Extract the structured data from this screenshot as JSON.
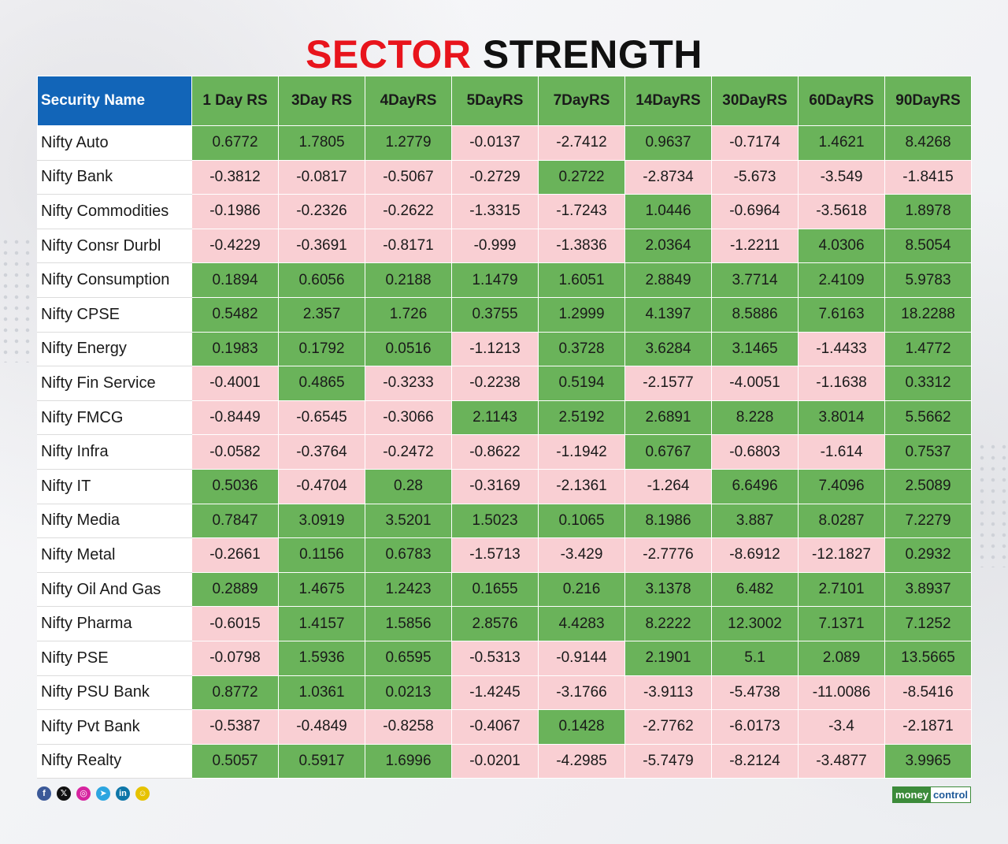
{
  "title": {
    "part1": "SECTOR",
    "part2": "STRENGTH"
  },
  "colors": {
    "positive": "#6ab35a",
    "negative": "#f9cfd3",
    "header_blue": "#1265b8",
    "title_red": "#e8141c"
  },
  "chart_data": {
    "type": "table",
    "title": "SECTOR STRENGTH",
    "columns": [
      "Security Name",
      "1 Day RS",
      "3Day RS",
      "4DayRS",
      "5DayRS",
      "7DayRS",
      "14DayRS",
      "30DayRS",
      "60DayRS",
      "90DayRS"
    ],
    "rows": [
      {
        "name": "Nifty Auto",
        "values": [
          "0.6772",
          "1.7805",
          "1.2779",
          "-0.0137",
          "-2.7412",
          "0.9637",
          "-0.7174",
          "1.4621",
          "8.4268"
        ]
      },
      {
        "name": "Nifty Bank",
        "values": [
          "-0.3812",
          "-0.0817",
          "-0.5067",
          "-0.2729",
          "0.2722",
          "-2.8734",
          "-5.673",
          "-3.549",
          "-1.8415"
        ]
      },
      {
        "name": "Nifty Commodities",
        "values": [
          "-0.1986",
          "-0.2326",
          "-0.2622",
          "-1.3315",
          "-1.7243",
          "1.0446",
          "-0.6964",
          "-3.5618",
          "1.8978"
        ]
      },
      {
        "name": "Nifty Consr Durbl",
        "values": [
          "-0.4229",
          "-0.3691",
          "-0.8171",
          "-0.999",
          "-1.3836",
          "2.0364",
          "-1.2211",
          "4.0306",
          "8.5054"
        ]
      },
      {
        "name": "Nifty Consumption",
        "values": [
          "0.1894",
          "0.6056",
          "0.2188",
          "1.1479",
          "1.6051",
          "2.8849",
          "3.7714",
          "2.4109",
          "5.9783"
        ]
      },
      {
        "name": "Nifty CPSE",
        "values": [
          "0.5482",
          "2.357",
          "1.726",
          "0.3755",
          "1.2999",
          "4.1397",
          "8.5886",
          "7.6163",
          "18.2288"
        ]
      },
      {
        "name": "Nifty Energy",
        "values": [
          "0.1983",
          "0.1792",
          "0.0516",
          "-1.1213",
          "0.3728",
          "3.6284",
          "3.1465",
          "-1.4433",
          "1.4772"
        ]
      },
      {
        "name": "Nifty Fin Service",
        "values": [
          "-0.4001",
          "0.4865",
          "-0.3233",
          "-0.2238",
          "0.5194",
          "-2.1577",
          "-4.0051",
          "-1.1638",
          "0.3312"
        ]
      },
      {
        "name": "Nifty FMCG",
        "values": [
          "-0.8449",
          "-0.6545",
          "-0.3066",
          "2.1143",
          "2.5192",
          "2.6891",
          "8.228",
          "3.8014",
          "5.5662"
        ]
      },
      {
        "name": "Nifty Infra",
        "values": [
          "-0.0582",
          "-0.3764",
          "-0.2472",
          "-0.8622",
          "-1.1942",
          "0.6767",
          "-0.6803",
          "-1.614",
          "0.7537"
        ]
      },
      {
        "name": "Nifty IT",
        "values": [
          "0.5036",
          "-0.4704",
          "0.28",
          "-0.3169",
          "-2.1361",
          "-1.264",
          "6.6496",
          "7.4096",
          "2.5089"
        ]
      },
      {
        "name": "Nifty Media",
        "values": [
          "0.7847",
          "3.0919",
          "3.5201",
          "1.5023",
          "0.1065",
          "8.1986",
          "3.887",
          "8.0287",
          "7.2279"
        ]
      },
      {
        "name": "Nifty Metal",
        "values": [
          "-0.2661",
          "0.1156",
          "0.6783",
          "-1.5713",
          "-3.429",
          "-2.7776",
          "-8.6912",
          "-12.1827",
          "0.2932"
        ]
      },
      {
        "name": "Nifty Oil And Gas",
        "values": [
          "0.2889",
          "1.4675",
          "1.2423",
          "0.1655",
          "0.216",
          "3.1378",
          "6.482",
          "2.7101",
          "3.8937"
        ]
      },
      {
        "name": "Nifty Pharma",
        "values": [
          "-0.6015",
          "1.4157",
          "1.5856",
          "2.8576",
          "4.4283",
          "8.2222",
          "12.3002",
          "7.1371",
          "7.1252"
        ]
      },
      {
        "name": "Nifty PSE",
        "values": [
          "-0.0798",
          "1.5936",
          "0.6595",
          "-0.5313",
          "-0.9144",
          "2.1901",
          "5.1",
          "2.089",
          "13.5665"
        ]
      },
      {
        "name": "Nifty PSU Bank",
        "values": [
          "0.8772",
          "1.0361",
          "0.0213",
          "-1.4245",
          "-3.1766",
          "-3.9113",
          "-5.4738",
          "-11.0086",
          "-8.5416"
        ]
      },
      {
        "name": "Nifty Pvt Bank",
        "values": [
          "-0.5387",
          "-0.4849",
          "-0.8258",
          "-0.4067",
          "0.1428",
          "-2.7762",
          "-6.0173",
          "-3.4",
          "-2.1871"
        ]
      },
      {
        "name": "Nifty Realty",
        "values": [
          "0.5057",
          "0.5917",
          "1.6996",
          "-0.0201",
          "-4.2985",
          "-5.7479",
          "-8.2124",
          "-3.4877",
          "3.9965"
        ]
      }
    ]
  },
  "footer": {
    "social_icons": [
      {
        "name": "facebook-icon",
        "glyph": "f",
        "color": "#3b5998"
      },
      {
        "name": "x-icon",
        "glyph": "𝕏",
        "color": "#111111"
      },
      {
        "name": "instagram-icon",
        "glyph": "◎",
        "color": "#d6249f"
      },
      {
        "name": "telegram-icon",
        "glyph": "➤",
        "color": "#2ca5e0"
      },
      {
        "name": "linkedin-icon",
        "glyph": "in",
        "color": "#0e76a8"
      },
      {
        "name": "snapchat-icon",
        "glyph": "☺",
        "color": "#e6c200"
      }
    ],
    "brand_part1": "money",
    "brand_part2": "control"
  }
}
